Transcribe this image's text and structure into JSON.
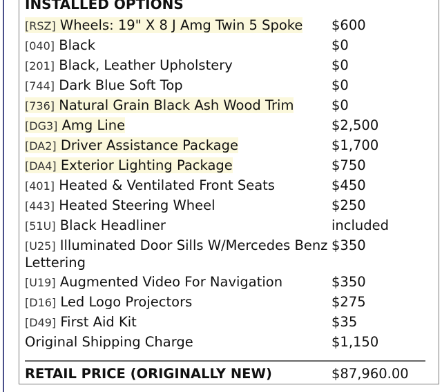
{
  "title": "INSTALLED OPTIONS",
  "highlight_color": "#fbf8dc",
  "options": [
    {
      "code": "[RSZ]",
      "name": "Wheels: 19\" X 8 J Amg Twin 5 Spoke",
      "price": "$600",
      "highlighted": true
    },
    {
      "code": "[040]",
      "name": "Black",
      "price": "$0",
      "highlighted": false
    },
    {
      "code": "[201]",
      "name": "Black, Leather Upholstery",
      "price": "$0",
      "highlighted": false
    },
    {
      "code": "[744]",
      "name": "Dark Blue Soft Top",
      "price": "$0",
      "highlighted": false
    },
    {
      "code": "[736]",
      "name": "Natural Grain Black Ash Wood Trim",
      "price": "$0",
      "highlighted": true
    },
    {
      "code": "[DG3]",
      "name": "Amg Line",
      "price": "$2,500",
      "highlighted": true
    },
    {
      "code": "[DA2]",
      "name": "Driver Assistance Package",
      "price": "$1,700",
      "highlighted": true
    },
    {
      "code": "[DA4]",
      "name": "Exterior Lighting Package",
      "price": "$750",
      "highlighted": true
    },
    {
      "code": "[401]",
      "name": "Heated & Ventilated Front Seats",
      "price": "$450",
      "highlighted": false
    },
    {
      "code": "[443]",
      "name": "Heated Steering Wheel",
      "price": "$250",
      "highlighted": false
    },
    {
      "code": "[51U]",
      "name": "Black Headliner",
      "price": "included",
      "highlighted": false
    },
    {
      "code": "[U25]",
      "name": "Illuminated Door Sills W/Mercedes Benz Lettering",
      "price": "$350",
      "highlighted": false
    },
    {
      "code": "[U19]",
      "name": "Augmented Video For Navigation",
      "price": "$350",
      "highlighted": false
    },
    {
      "code": "[D16]",
      "name": "Led Logo Projectors",
      "price": "$275",
      "highlighted": false
    },
    {
      "code": "[D49]",
      "name": "First Aid Kit",
      "price": "$35",
      "highlighted": false
    },
    {
      "code": "",
      "name": "Original Shipping Charge",
      "price": "$1,150",
      "highlighted": false
    }
  ],
  "total": {
    "label": "RETAIL PRICE (ORIGINALLY NEW)",
    "value": "$87,960.00"
  }
}
